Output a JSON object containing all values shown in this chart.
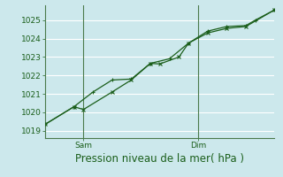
{
  "xlabel": "Pression niveau de la mer( hPa )",
  "ylim": [
    1018.6,
    1025.8
  ],
  "yticks": [
    1019,
    1020,
    1021,
    1022,
    1023,
    1024,
    1025
  ],
  "background_color": "#cce8ec",
  "grid_color": "#ffffff",
  "line_color": "#1a5e1a",
  "line1_x": [
    0,
    1.5,
    2.0,
    3.5,
    4.5,
    5.5,
    6.0,
    7.0,
    7.5,
    8.5,
    9.5,
    10.5,
    12.0
  ],
  "line1_y": [
    1019.35,
    1020.3,
    1020.15,
    1021.1,
    1021.75,
    1022.65,
    1022.62,
    1023.0,
    1023.75,
    1024.3,
    1024.55,
    1024.65,
    1025.55
  ],
  "line2_x": [
    0,
    1.5,
    2.5,
    3.5,
    4.5,
    5.5,
    6.5,
    7.5,
    8.5,
    9.5,
    10.5,
    11.0,
    12.0
  ],
  "line2_y": [
    1019.35,
    1020.3,
    1021.1,
    1021.75,
    1021.8,
    1022.65,
    1022.9,
    1023.75,
    1024.4,
    1024.65,
    1024.7,
    1025.0,
    1025.55
  ],
  "sam_x": 2.0,
  "dim_x": 8.0,
  "xlim": [
    0,
    12.0
  ],
  "tick_label_fontsize": 6.5,
  "xlabel_fontsize": 8.5,
  "spine_color": "#4a7a4a",
  "vline_color": "#4a7a4a"
}
